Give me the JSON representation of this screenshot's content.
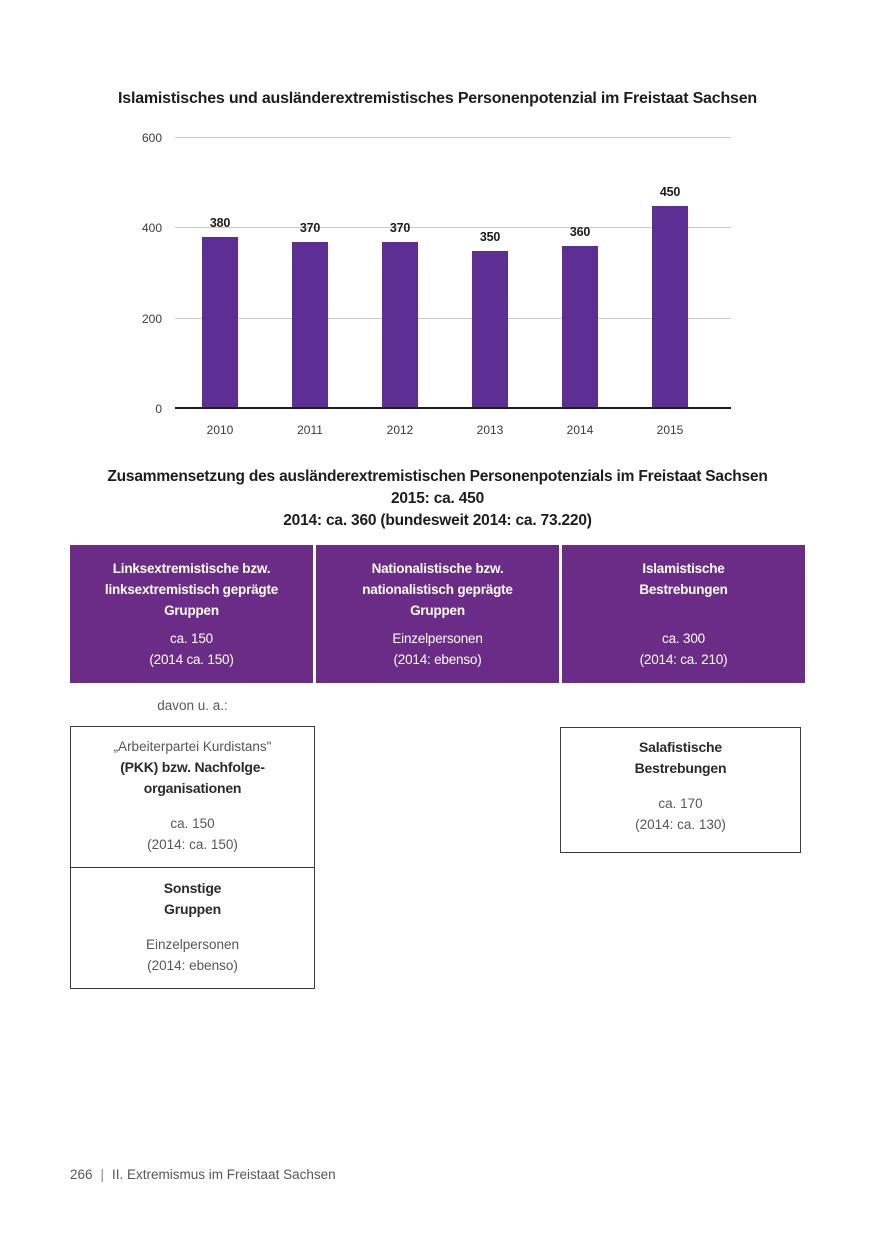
{
  "title": "Islamistisches und ausländerextremistisches Personenpotenzial im Freistaat Sachsen",
  "chart_data": {
    "type": "bar",
    "title": "Islamistisches und ausländerextremistisches Personenpotenzial im Freistaat Sachsen",
    "categories": [
      "2010",
      "2011",
      "2012",
      "2013",
      "2014",
      "2015"
    ],
    "values": [
      380,
      370,
      370,
      350,
      360,
      450
    ],
    "xlabel": "",
    "ylabel": "",
    "ylim": [
      0,
      600
    ],
    "yticks": [
      0,
      200,
      400,
      600
    ],
    "grid": true,
    "legend": "none",
    "bar_color": "#5D2E94",
    "gridline_color": "#c9c9c9"
  },
  "composition": {
    "heading": [
      "Zusammensetzung des ausländerextremistischen Personenpotenzials im Freistaat Sachsen",
      "2015: ca. 450",
      "2014: ca. 360 (bundesweit 2014: ca. 73.220)"
    ],
    "cells": [
      {
        "title": [
          "Linksextremistische bzw.",
          "linksextremistisch geprägte",
          "Gruppen"
        ],
        "values": [
          "ca. 150",
          "(2014 ca. 150)"
        ]
      },
      {
        "title": [
          "Nationalistische bzw.",
          "nationalistisch geprägte",
          "Gruppen"
        ],
        "values": [
          "Einzelpersonen",
          "(2014: ebenso)"
        ]
      },
      {
        "title": [
          "Islamistische",
          "Bestrebungen"
        ],
        "values": [
          "ca. 300",
          "(2014: ca. 210)"
        ]
      }
    ],
    "davon_label": "davon u. a.:",
    "sub_boxes": {
      "pkk": {
        "intro": "„Arbeiterpartei Kurdistans\"",
        "title": [
          "(PKK) bzw. Nachfolge-",
          "organisationen"
        ],
        "values": [
          "ca. 150",
          "(2014: ca. 150)"
        ]
      },
      "sonstige": {
        "title": [
          "Sonstige",
          "Gruppen"
        ],
        "values": [
          "Einzelpersonen",
          "(2014: ebenso)"
        ]
      },
      "salafisten": {
        "title": [
          "Salafistische",
          "Bestrebungen"
        ],
        "values": [
          "ca. 170",
          "(2014: ca. 130)"
        ]
      }
    }
  },
  "footer": {
    "page_number": "266",
    "separator": "|",
    "section": "II. Extremismus im Freistaat Sachsen"
  },
  "colors": {
    "header_box_purple": "#6B2C87",
    "bar_purple": "#5D2E94",
    "text_dark": "#1d1d1b",
    "text_gray": "#575756"
  }
}
